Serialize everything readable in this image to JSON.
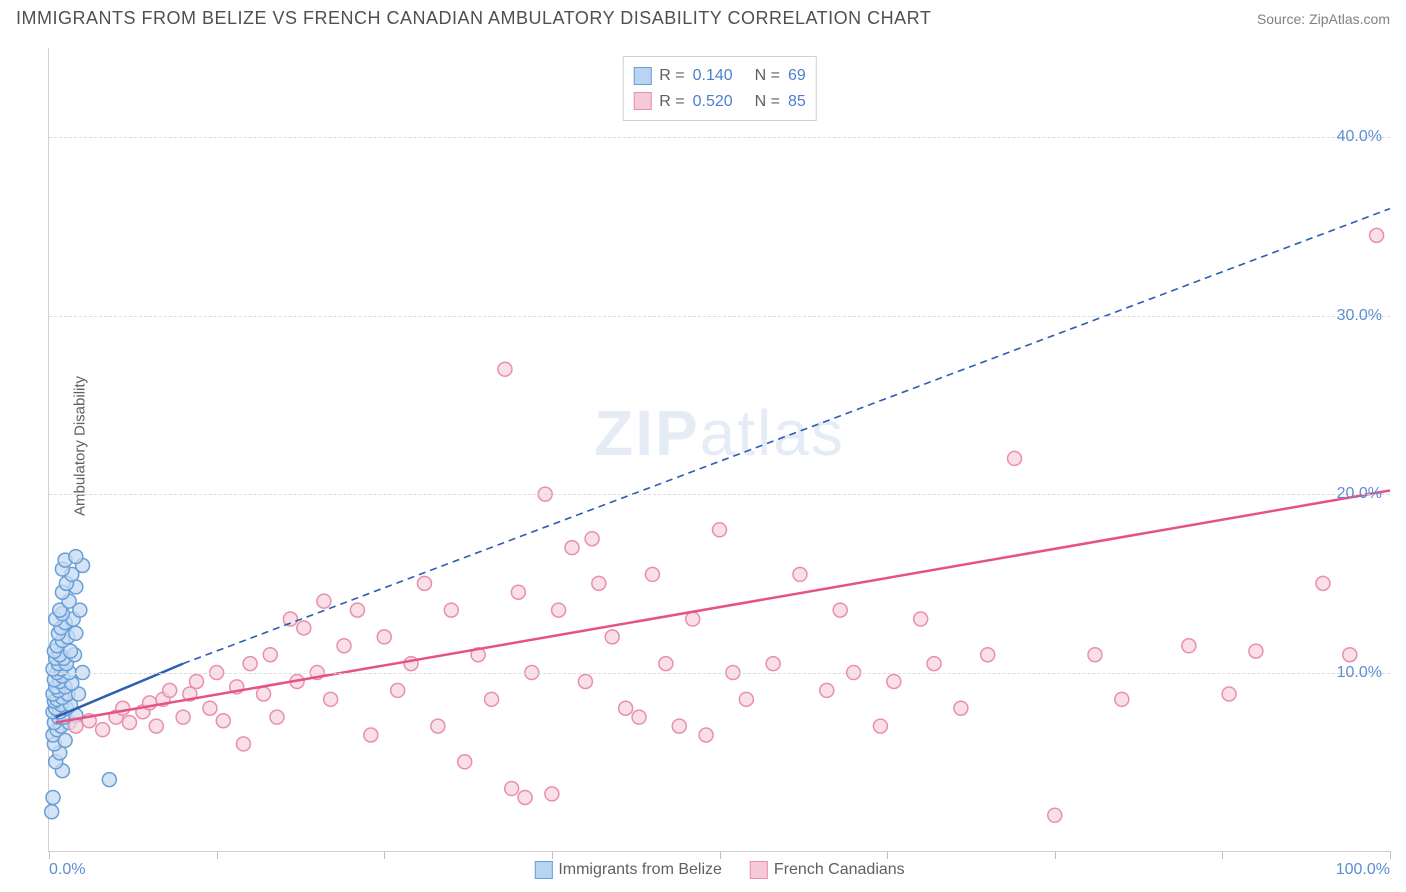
{
  "header": {
    "title": "IMMIGRANTS FROM BELIZE VS FRENCH CANADIAN AMBULATORY DISABILITY CORRELATION CHART",
    "source_label": "Source: ",
    "source_name": "ZipAtlas.com"
  },
  "watermark": {
    "zip": "ZIP",
    "atlas": "atlas"
  },
  "chart": {
    "type": "scatter",
    "y_axis_label": "Ambulatory Disability",
    "xlim": [
      0,
      100
    ],
    "ylim": [
      0,
      45
    ],
    "x_ticks": [
      0,
      12.5,
      25,
      37.5,
      50,
      62.5,
      75,
      87.5,
      100
    ],
    "x_tick_labels": {
      "0": "0.0%",
      "100": "100.0%"
    },
    "y_grid": [
      10,
      20,
      30,
      40
    ],
    "y_tick_labels": {
      "10": "10.0%",
      "20": "20.0%",
      "30": "30.0%",
      "40": "40.0%"
    },
    "background_color": "#ffffff",
    "grid_color": "#dcdcdc",
    "axis_color": "#d0d0d0",
    "tick_label_color": "#5b8dd6",
    "marker_radius": 7,
    "marker_stroke_width": 1.5,
    "series": [
      {
        "name": "Immigrants from Belize",
        "color_fill": "#c6dbf2",
        "color_stroke": "#6a9ed8",
        "swatch_fill": "#b9d4f0",
        "swatch_stroke": "#6a9ed8",
        "R": "0.140",
        "N": "69",
        "trend": {
          "x1": 0.5,
          "y1": 7.5,
          "x2": 10,
          "y2": 10.5,
          "solid_until_x": 10,
          "dash_to_x": 100,
          "dash_to_y": 36,
          "color": "#2e5fb3",
          "width": 2.5,
          "dash": "7 5"
        },
        "points": [
          [
            0.2,
            2.2
          ],
          [
            0.3,
            3.0
          ],
          [
            1.0,
            4.5
          ],
          [
            4.5,
            4.0
          ],
          [
            0.5,
            5.0
          ],
          [
            0.8,
            5.5
          ],
          [
            0.4,
            6.0
          ],
          [
            1.2,
            6.2
          ],
          [
            0.3,
            6.5
          ],
          [
            0.6,
            6.8
          ],
          [
            0.9,
            7.0
          ],
          [
            0.4,
            7.2
          ],
          [
            1.5,
            7.2
          ],
          [
            0.7,
            7.5
          ],
          [
            1.1,
            7.5
          ],
          [
            0.3,
            7.8
          ],
          [
            0.8,
            7.8
          ],
          [
            2.0,
            7.6
          ],
          [
            0.5,
            8.0
          ],
          [
            1.3,
            8.0
          ],
          [
            0.9,
            8.2
          ],
          [
            0.4,
            8.4
          ],
          [
            1.6,
            8.2
          ],
          [
            0.6,
            8.5
          ],
          [
            1.0,
            8.6
          ],
          [
            0.3,
            8.8
          ],
          [
            1.4,
            8.8
          ],
          [
            0.7,
            9.0
          ],
          [
            2.2,
            8.8
          ],
          [
            0.5,
            9.2
          ],
          [
            1.2,
            9.2
          ],
          [
            0.8,
            9.5
          ],
          [
            1.7,
            9.4
          ],
          [
            0.4,
            9.6
          ],
          [
            1.0,
            9.8
          ],
          [
            0.6,
            10.0
          ],
          [
            1.5,
            10.0
          ],
          [
            0.9,
            10.2
          ],
          [
            0.3,
            10.2
          ],
          [
            2.5,
            10.0
          ],
          [
            0.7,
            10.5
          ],
          [
            1.3,
            10.5
          ],
          [
            0.5,
            10.8
          ],
          [
            1.1,
            10.8
          ],
          [
            0.8,
            11.0
          ],
          [
            1.9,
            11.0
          ],
          [
            0.4,
            11.2
          ],
          [
            1.6,
            11.2
          ],
          [
            0.6,
            11.5
          ],
          [
            1.0,
            11.8
          ],
          [
            1.4,
            12.0
          ],
          [
            0.7,
            12.2
          ],
          [
            2.0,
            12.2
          ],
          [
            0.9,
            12.5
          ],
          [
            1.2,
            12.8
          ],
          [
            0.5,
            13.0
          ],
          [
            1.8,
            13.0
          ],
          [
            1.0,
            13.3
          ],
          [
            2.3,
            13.5
          ],
          [
            0.8,
            13.5
          ],
          [
            1.5,
            14.0
          ],
          [
            1.0,
            14.5
          ],
          [
            2.0,
            14.8
          ],
          [
            1.3,
            15.0
          ],
          [
            1.7,
            15.5
          ],
          [
            1.0,
            15.8
          ],
          [
            2.5,
            16.0
          ],
          [
            1.2,
            16.3
          ],
          [
            2.0,
            16.5
          ]
        ]
      },
      {
        "name": "French Canadians",
        "color_fill": "#f7d4de",
        "color_stroke": "#e98fae",
        "swatch_fill": "#f5c9d7",
        "swatch_stroke": "#e98fae",
        "R": "0.520",
        "N": "85",
        "trend": {
          "x1": 0.5,
          "y1": 7.2,
          "x2": 100,
          "y2": 20.2,
          "color": "#e65284",
          "width": 2.5
        },
        "points": [
          [
            2,
            7.0
          ],
          [
            3,
            7.3
          ],
          [
            4,
            6.8
          ],
          [
            5,
            7.5
          ],
          [
            5.5,
            8.0
          ],
          [
            6,
            7.2
          ],
          [
            7,
            7.8
          ],
          [
            7.5,
            8.3
          ],
          [
            8,
            7.0
          ],
          [
            8.5,
            8.5
          ],
          [
            9,
            9.0
          ],
          [
            10,
            7.5
          ],
          [
            10.5,
            8.8
          ],
          [
            11,
            9.5
          ],
          [
            12,
            8.0
          ],
          [
            12.5,
            10.0
          ],
          [
            13,
            7.3
          ],
          [
            14,
            9.2
          ],
          [
            14.5,
            6.0
          ],
          [
            15,
            10.5
          ],
          [
            16,
            8.8
          ],
          [
            16.5,
            11.0
          ],
          [
            17,
            7.5
          ],
          [
            18,
            13.0
          ],
          [
            18.5,
            9.5
          ],
          [
            19,
            12.5
          ],
          [
            20,
            10.0
          ],
          [
            20.5,
            14.0
          ],
          [
            21,
            8.5
          ],
          [
            22,
            11.5
          ],
          [
            23,
            13.5
          ],
          [
            24,
            6.5
          ],
          [
            25,
            12.0
          ],
          [
            26,
            9.0
          ],
          [
            27,
            10.5
          ],
          [
            28,
            15.0
          ],
          [
            29,
            7.0
          ],
          [
            30,
            13.5
          ],
          [
            31,
            5.0
          ],
          [
            32,
            11.0
          ],
          [
            33,
            8.5
          ],
          [
            34,
            27.0
          ],
          [
            34.5,
            3.5
          ],
          [
            35,
            14.5
          ],
          [
            35.5,
            3.0
          ],
          [
            36,
            10.0
          ],
          [
            37,
            20.0
          ],
          [
            37.5,
            3.2
          ],
          [
            38,
            13.5
          ],
          [
            39,
            17.0
          ],
          [
            40,
            9.5
          ],
          [
            40.5,
            17.5
          ],
          [
            41,
            15.0
          ],
          [
            42,
            12.0
          ],
          [
            43,
            8.0
          ],
          [
            44,
            7.5
          ],
          [
            45,
            15.5
          ],
          [
            46,
            10.5
          ],
          [
            47,
            7.0
          ],
          [
            48,
            13.0
          ],
          [
            49,
            6.5
          ],
          [
            50,
            18.0
          ],
          [
            51,
            10.0
          ],
          [
            52,
            8.5
          ],
          [
            54,
            10.5
          ],
          [
            56,
            15.5
          ],
          [
            58,
            9.0
          ],
          [
            59,
            13.5
          ],
          [
            60,
            10.0
          ],
          [
            62,
            7.0
          ],
          [
            63,
            9.5
          ],
          [
            65,
            13.0
          ],
          [
            66,
            10.5
          ],
          [
            68,
            8.0
          ],
          [
            70,
            11.0
          ],
          [
            72,
            22.0
          ],
          [
            75,
            2.0
          ],
          [
            78,
            11.0
          ],
          [
            80,
            8.5
          ],
          [
            85,
            11.5
          ],
          [
            88,
            8.8
          ],
          [
            90,
            11.2
          ],
          [
            95,
            15.0
          ],
          [
            97,
            11.0
          ],
          [
            99,
            34.5
          ]
        ]
      }
    ],
    "legend_top": {
      "r_label": "R  =",
      "n_label": "N  =",
      "text_color_label": "#606060",
      "text_color_value": "#4b7fd0"
    },
    "legend_bottom_labels": [
      "Immigrants from Belize",
      "French Canadians"
    ]
  }
}
